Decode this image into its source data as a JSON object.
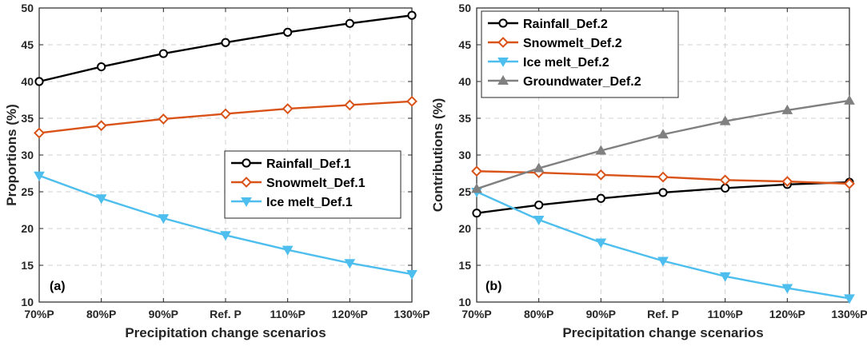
{
  "chart_data": [
    {
      "type": "line",
      "panel_tag": "(a)",
      "xlabel": "Precipitation change scenarios",
      "ylabel": "Proportions (%)",
      "categories": [
        "70%P",
        "80%P",
        "90%P",
        "Ref. P",
        "110%P",
        "120%P",
        "130%P"
      ],
      "ylim": [
        10,
        50
      ],
      "yticks": [
        10,
        15,
        20,
        25,
        30,
        35,
        40,
        45,
        50
      ],
      "grid": true,
      "legend_position": "center-right",
      "series": [
        {
          "name": "Rainfall_Def.1",
          "color": "#000000",
          "marker": "circle",
          "values": [
            40.0,
            42.0,
            43.8,
            45.3,
            46.7,
            47.9,
            49.0
          ]
        },
        {
          "name": "Snowmelt_Def.1",
          "color": "#d95319",
          "marker": "diamond",
          "values": [
            33.0,
            34.0,
            34.9,
            35.6,
            36.3,
            36.8,
            37.3
          ]
        },
        {
          "name": "Ice melt_Def.1",
          "color": "#4dbeee",
          "marker": "triangle-down",
          "values": [
            27.2,
            24.1,
            21.4,
            19.1,
            17.1,
            15.3,
            13.8
          ]
        }
      ]
    },
    {
      "type": "line",
      "panel_tag": "(b)",
      "xlabel": "Precipitation change scenarios",
      "ylabel": "Contributions (%)",
      "categories": [
        "70%P",
        "80%P",
        "90%P",
        "Ref. P",
        "110%P",
        "120%P",
        "130%P"
      ],
      "ylim": [
        10,
        50
      ],
      "yticks": [
        10,
        15,
        20,
        25,
        30,
        35,
        40,
        45,
        50
      ],
      "grid": true,
      "legend_position": "top-left",
      "series": [
        {
          "name": "Rainfall_Def.2",
          "color": "#000000",
          "marker": "circle",
          "values": [
            22.1,
            23.2,
            24.1,
            24.9,
            25.5,
            26.0,
            26.3
          ]
        },
        {
          "name": "Snowmelt_Def.2",
          "color": "#d95319",
          "marker": "diamond",
          "values": [
            27.8,
            27.6,
            27.3,
            27.0,
            26.6,
            26.4,
            26.1
          ]
        },
        {
          "name": "Ice melt_Def.2",
          "color": "#4dbeee",
          "marker": "triangle-down",
          "values": [
            25.0,
            21.2,
            18.1,
            15.6,
            13.5,
            11.9,
            10.5
          ]
        },
        {
          "name": "Groundwater_Def.2",
          "color": "#808080",
          "marker": "triangle-up",
          "values": [
            25.4,
            28.2,
            30.6,
            32.8,
            34.6,
            36.1,
            37.4
          ]
        }
      ]
    }
  ]
}
